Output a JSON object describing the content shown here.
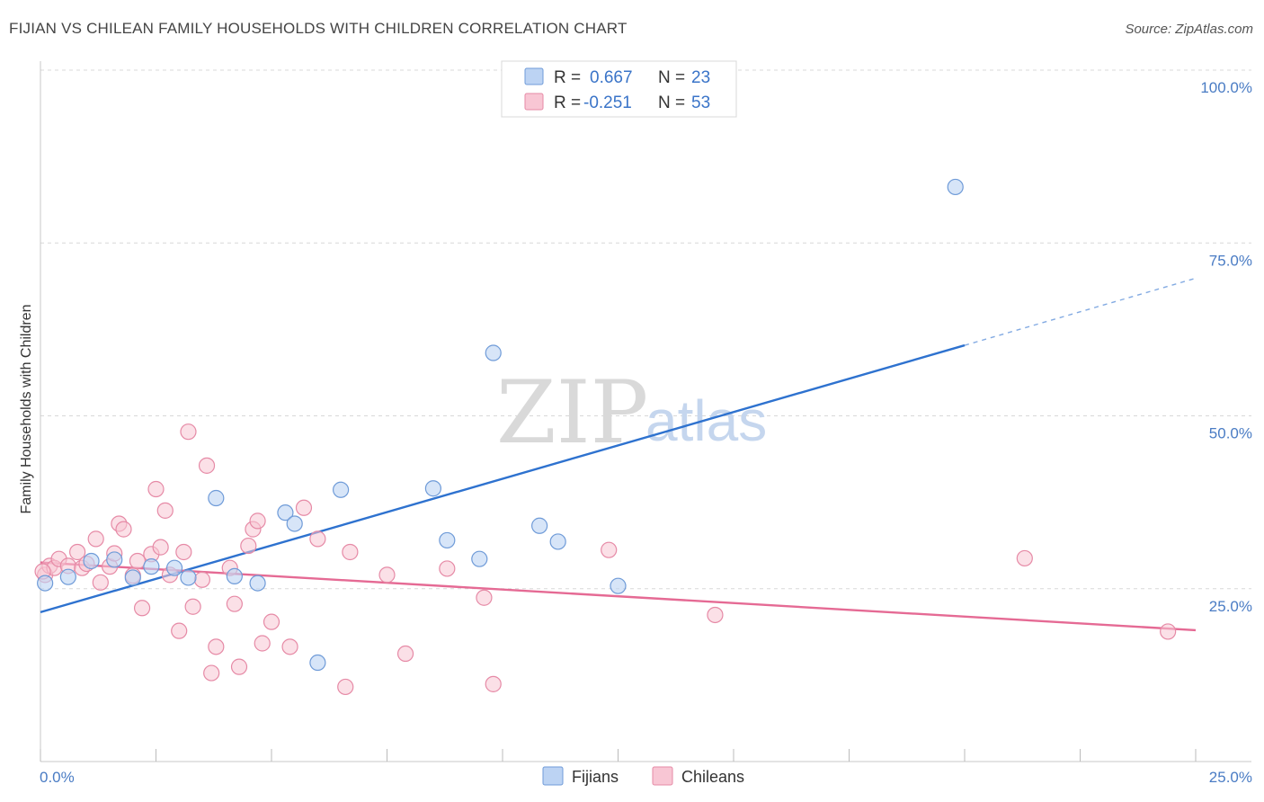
{
  "header": {
    "title": "FIJIAN VS CHILEAN FAMILY HOUSEHOLDS WITH CHILDREN CORRELATION CHART",
    "source": "Source: ZipAtlas.com"
  },
  "watermark": {
    "zip": "ZIP",
    "atlas": "atlas"
  },
  "legend": {
    "fijians": {
      "r_label": "R =",
      "r_value": "0.667",
      "n_label": "N =",
      "n_value": "23"
    },
    "chileans": {
      "r_label": "R =",
      "r_value": "-0.251",
      "n_label": "N =",
      "n_value": "53"
    }
  },
  "bottom_legend": {
    "fijians": "Fijians",
    "chileans": "Chileans"
  },
  "colors": {
    "fijians_fill": "#bcd3f3",
    "fijians_stroke": "#6f9bd8",
    "fijians_line": "#2e72cf",
    "chileans_fill": "#f8c6d4",
    "chileans_stroke": "#e68aa6",
    "chileans_line": "#e56a94",
    "grid": "#d8d8d8",
    "axis_text": "#4a7cc4"
  },
  "chart_data": {
    "type": "scatter",
    "title": "FIJIAN VS CHILEAN FAMILY HOUSEHOLDS WITH CHILDREN CORRELATION CHART",
    "xlabel": "",
    "ylabel": "Family Households with Children",
    "xlim": [
      0,
      25
    ],
    "ylim": [
      0,
      100
    ],
    "x_tick_labels": [
      "0.0%",
      "25.0%"
    ],
    "y_ticks": [
      25,
      50,
      75,
      100
    ],
    "y_tick_labels": [
      "25.0%",
      "50.0%",
      "75.0%",
      "100.0%"
    ],
    "grid": true,
    "legend_position": "top-center",
    "series": [
      {
        "name": "Fijians",
        "r": 0.667,
        "n": 23,
        "points": [
          [
            0.1,
            25.8
          ],
          [
            0.6,
            26.7
          ],
          [
            1.1,
            29.0
          ],
          [
            1.6,
            29.2
          ],
          [
            2.0,
            26.6
          ],
          [
            2.4,
            28.2
          ],
          [
            2.9,
            28.0
          ],
          [
            3.2,
            26.6
          ],
          [
            3.8,
            38.1
          ],
          [
            4.2,
            26.8
          ],
          [
            4.7,
            25.8
          ],
          [
            5.3,
            36.0
          ],
          [
            5.5,
            34.4
          ],
          [
            6.0,
            14.3
          ],
          [
            6.5,
            39.3
          ],
          [
            8.5,
            39.5
          ],
          [
            8.8,
            32.0
          ],
          [
            9.5,
            29.3
          ],
          [
            9.8,
            59.1
          ],
          [
            10.8,
            34.1
          ],
          [
            11.2,
            31.8
          ],
          [
            12.5,
            25.4
          ],
          [
            19.8,
            83.1
          ]
        ],
        "trend": {
          "x0": 0,
          "y0": 21.6,
          "x1": 20,
          "y1": 60.2,
          "dash_to_x": 25,
          "dash_to_y": 69.9
        }
      },
      {
        "name": "Chileans",
        "r": -0.251,
        "n": 53,
        "points": [
          [
            0.1,
            27.0
          ],
          [
            0.2,
            28.3
          ],
          [
            0.3,
            28.0
          ],
          [
            0.4,
            29.3
          ],
          [
            0.6,
            28.3
          ],
          [
            0.8,
            30.3
          ],
          [
            0.9,
            28.0
          ],
          [
            1.0,
            28.6
          ],
          [
            1.2,
            32.2
          ],
          [
            1.3,
            25.9
          ],
          [
            1.5,
            28.2
          ],
          [
            1.6,
            30.1
          ],
          [
            1.7,
            34.4
          ],
          [
            1.8,
            33.6
          ],
          [
            2.0,
            26.9
          ],
          [
            2.1,
            29.0
          ],
          [
            2.2,
            22.2
          ],
          [
            2.4,
            30.0
          ],
          [
            2.5,
            39.4
          ],
          [
            2.6,
            31.0
          ],
          [
            2.7,
            36.3
          ],
          [
            2.8,
            27.0
          ],
          [
            3.0,
            18.9
          ],
          [
            3.1,
            30.3
          ],
          [
            3.2,
            47.7
          ],
          [
            3.3,
            22.4
          ],
          [
            3.5,
            26.3
          ],
          [
            3.6,
            42.8
          ],
          [
            3.7,
            12.8
          ],
          [
            3.8,
            16.6
          ],
          [
            4.1,
            28.0
          ],
          [
            4.2,
            22.8
          ],
          [
            4.3,
            13.7
          ],
          [
            4.5,
            31.2
          ],
          [
            4.6,
            33.6
          ],
          [
            4.7,
            34.8
          ],
          [
            4.8,
            17.1
          ],
          [
            5.0,
            20.2
          ],
          [
            5.4,
            16.6
          ],
          [
            5.7,
            36.7
          ],
          [
            6.0,
            32.2
          ],
          [
            6.6,
            10.8
          ],
          [
            6.7,
            30.3
          ],
          [
            7.5,
            27.0
          ],
          [
            7.9,
            15.6
          ],
          [
            8.8,
            27.9
          ],
          [
            9.6,
            23.7
          ],
          [
            9.8,
            11.2
          ],
          [
            12.3,
            30.6
          ],
          [
            14.6,
            21.2
          ],
          [
            21.3,
            29.4
          ],
          [
            24.4,
            18.8
          ],
          [
            0.05,
            27.5
          ]
        ],
        "trend": {
          "x0": 0,
          "y0": 28.8,
          "x1": 25,
          "y1": 19.0
        }
      }
    ]
  }
}
